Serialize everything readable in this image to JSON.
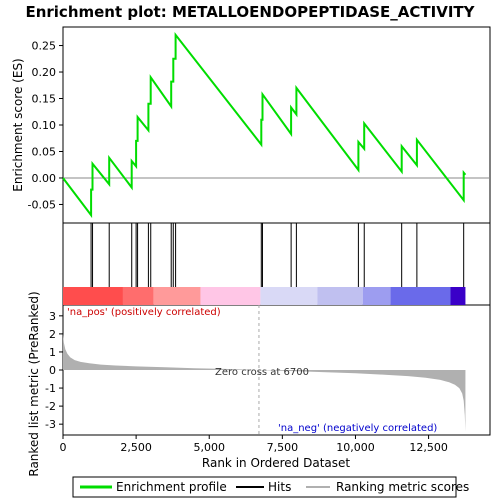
{
  "chart_data": {
    "type": "line",
    "title": "Enrichment plot: METALLOENDOPEPTIDASE_ACTIVITY",
    "xlabel": "Rank in Ordered Dataset",
    "ylabel_top": "Enrichment score (ES)",
    "ylabel_bottom": "Ranked list metric (PreRanked)",
    "x_range": [
      0,
      14600
    ],
    "x_ticks": [
      0,
      2500,
      5000,
      7500,
      10000,
      12500
    ],
    "x_tick_labels": [
      "0",
      "2,500",
      "5,000",
      "7,500",
      "10,000",
      "12,500"
    ],
    "es_ylim": [
      -0.085,
      0.285
    ],
    "es_ticks": [
      -0.05,
      0.0,
      0.05,
      0.1,
      0.15,
      0.2,
      0.25
    ],
    "es_tick_labels": [
      "-0.05",
      "0.00",
      "0.05",
      "0.10",
      "0.15",
      "0.20",
      "0.25"
    ],
    "metric_ylim": [
      -3.6,
      3.6
    ],
    "metric_ticks": [
      -3,
      -2,
      -1,
      0,
      1,
      2,
      3
    ],
    "metric_tick_labels": [
      "-3",
      "-2",
      "-1",
      "0",
      "1",
      "2",
      "3"
    ],
    "hits": [
      960,
      1010,
      1580,
      2350,
      2500,
      2550,
      2920,
      3000,
      3700,
      3770,
      3850,
      6780,
      6820,
      7800,
      7980,
      10100,
      10300,
      11580,
      12100,
      13700
    ],
    "es_series": {
      "name": "Enrichment profile",
      "x": [
        0,
        960,
        960,
        1010,
        1010,
        1580,
        1580,
        2350,
        2350,
        2500,
        2500,
        2550,
        2550,
        2920,
        2920,
        3000,
        3000,
        3700,
        3700,
        3770,
        3770,
        3850,
        3850,
        6780,
        6780,
        6820,
        6820,
        7800,
        7800,
        7980,
        7980,
        10100,
        10100,
        10300,
        10300,
        11580,
        11580,
        12100,
        12100,
        13700,
        13700,
        13760
      ],
      "y": [
        0.0,
        -0.07,
        -0.022,
        -0.022,
        0.027,
        -0.012,
        0.038,
        -0.018,
        0.032,
        0.022,
        0.07,
        0.07,
        0.115,
        0.09,
        0.14,
        0.14,
        0.19,
        0.135,
        0.182,
        0.182,
        0.225,
        0.225,
        0.27,
        0.063,
        0.11,
        0.11,
        0.158,
        0.083,
        0.133,
        0.12,
        0.17,
        0.015,
        0.068,
        0.055,
        0.103,
        0.012,
        0.06,
        0.024,
        0.072,
        -0.042,
        0.01,
        0.006
      ],
      "color": "#00dd00"
    },
    "metric_series": {
      "name": "Ranking metric scores",
      "x": [
        0,
        30,
        80,
        150,
        250,
        400,
        600,
        900,
        1300,
        1800,
        2500,
        3500,
        4500,
        5500,
        6200,
        6700,
        7200,
        8000,
        9000,
        10000,
        11000,
        11800,
        12400,
        12900,
        13200,
        13400,
        13550,
        13650,
        13700,
        13740,
        13760
      ],
      "y": [
        2.0,
        1.5,
        1.15,
        0.9,
        0.7,
        0.55,
        0.45,
        0.37,
        0.3,
        0.25,
        0.2,
        0.15,
        0.1,
        0.06,
        0.03,
        0.0,
        -0.03,
        -0.07,
        -0.12,
        -0.18,
        -0.26,
        -0.34,
        -0.43,
        -0.55,
        -0.68,
        -0.82,
        -1.0,
        -1.3,
        -1.7,
        -2.5,
        -3.4
      ],
      "color": "#b0b0b0"
    },
    "zero_cross": 6700,
    "annotations": {
      "zero_cross_label": "Zero cross at 6700",
      "pos_label": "'na_pos' (positively correlated)",
      "neg_label": "'na_neg' (negatively correlated)"
    },
    "band_segments": [
      {
        "from": 0,
        "to": 2050,
        "color": "#ff4d4d"
      },
      {
        "from": 2050,
        "to": 3100,
        "color": "#ff6d6d"
      },
      {
        "from": 3100,
        "to": 4700,
        "color": "#ff9a9a"
      },
      {
        "from": 4700,
        "to": 6750,
        "color": "#ffc6e6"
      },
      {
        "from": 6750,
        "to": 8700,
        "color": "#d9d9f6"
      },
      {
        "from": 8700,
        "to": 10250,
        "color": "#c0c0f0"
      },
      {
        "from": 10250,
        "to": 11200,
        "color": "#9d9df0"
      },
      {
        "from": 11200,
        "to": 13250,
        "color": "#6a6aea"
      },
      {
        "from": 13250,
        "to": 13760,
        "color": "#3a00c8"
      }
    ],
    "legend": {
      "position": "bottom",
      "entries": [
        {
          "label": "Enrichment profile",
          "color": "#00dd00"
        },
        {
          "label": "Hits",
          "color": "#000000"
        },
        {
          "label": "Ranking metric scores",
          "color": "#b0b0b0"
        }
      ]
    }
  }
}
